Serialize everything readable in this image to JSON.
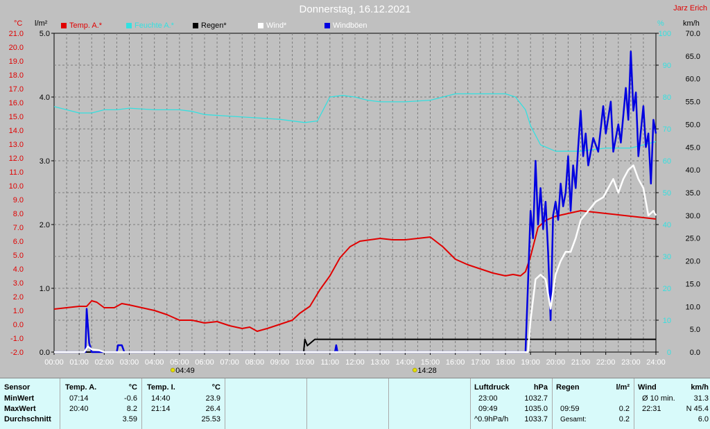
{
  "title": "Donnerstag, 16.12.2021",
  "author": "Jarz Erich",
  "legend": [
    {
      "label": "Temp. A.*",
      "color": "#e00000",
      "text_color": "#e00000"
    },
    {
      "label": "Feuchte A.*",
      "color": "#33e0e0",
      "text_color": "#33e0e0"
    },
    {
      "label": "Regen*",
      "color": "#000000",
      "text_color": "#000000"
    },
    {
      "label": "Wind*",
      "color": "#ffffff",
      "text_color": "#ffffff"
    },
    {
      "label": "Windböen",
      "color": "#0000e0",
      "text_color": "#ffffff"
    }
  ],
  "chart_data": {
    "type": "line",
    "x_range": [
      "00:00",
      "24:00"
    ],
    "x_ticks": [
      "00:00",
      "01:00",
      "02:00",
      "03:00",
      "04:00",
      "05:00",
      "06:00",
      "07:00",
      "08:00",
      "09:00",
      "10:00",
      "11:00",
      "12:00",
      "13:00",
      "14:00",
      "15:00",
      "16:00",
      "17:00",
      "18:00",
      "19:00",
      "20:00",
      "21:00",
      "22:00",
      "23:00",
      "24:00"
    ],
    "sunrise": "04:49",
    "sunset": "14:28",
    "grid": true,
    "axes": {
      "temp": {
        "unit": "°C",
        "min": -2.0,
        "max": 21.0,
        "ticks": [
          "-2.0",
          "-1.0",
          "0.0",
          "1.0",
          "2.0",
          "3.0",
          "4.0",
          "5.0",
          "6.0",
          "7.0",
          "8.0",
          "9.0",
          "10.0",
          "11.0",
          "12.0",
          "13.0",
          "14.0",
          "15.0",
          "16.0",
          "17.0",
          "18.0",
          "19.0",
          "20.0",
          "21.0"
        ]
      },
      "rain": {
        "unit": "l/m²",
        "min": 0.0,
        "max": 5.0,
        "ticks": [
          "0.0",
          "1.0",
          "2.0",
          "3.0",
          "4.0",
          "5.0"
        ]
      },
      "humidity": {
        "unit": "%",
        "min": 0,
        "max": 100,
        "ticks": [
          "0",
          "10",
          "20",
          "30",
          "40",
          "50",
          "60",
          "70",
          "80",
          "90",
          "100"
        ]
      },
      "wind": {
        "unit": "km/h",
        "min": 0.0,
        "max": 70.0,
        "ticks": [
          "0.0",
          "5.0",
          "10.0",
          "15.0",
          "20.0",
          "25.0",
          "30.0",
          "35.0",
          "40.0",
          "45.0",
          "50.0",
          "55.0",
          "60.0",
          "65.0",
          "70.0"
        ]
      }
    },
    "series": [
      {
        "name": "Temp. A.*",
        "axis": "temp",
        "color": "#e00000",
        "points": [
          [
            0,
            1.1
          ],
          [
            0.5,
            1.2
          ],
          [
            1,
            1.3
          ],
          [
            1.3,
            1.3
          ],
          [
            1.5,
            1.7
          ],
          [
            1.7,
            1.6
          ],
          [
            2,
            1.2
          ],
          [
            2.4,
            1.2
          ],
          [
            2.7,
            1.5
          ],
          [
            3,
            1.4
          ],
          [
            3.5,
            1.2
          ],
          [
            4,
            1.0
          ],
          [
            4.5,
            0.7
          ],
          [
            5,
            0.3
          ],
          [
            5.5,
            0.3
          ],
          [
            6,
            0.1
          ],
          [
            6.5,
            0.2
          ],
          [
            7,
            -0.1
          ],
          [
            7.5,
            -0.3
          ],
          [
            7.8,
            -0.2
          ],
          [
            8.1,
            -0.5
          ],
          [
            8.5,
            -0.3
          ],
          [
            9,
            0.0
          ],
          [
            9.5,
            0.3
          ],
          [
            9.8,
            0.8
          ],
          [
            10.2,
            1.3
          ],
          [
            10.6,
            2.5
          ],
          [
            11,
            3.5
          ],
          [
            11.4,
            4.8
          ],
          [
            11.8,
            5.6
          ],
          [
            12.2,
            6.0
          ],
          [
            12.6,
            6.1
          ],
          [
            13,
            6.2
          ],
          [
            13.5,
            6.1
          ],
          [
            14,
            6.1
          ],
          [
            14.5,
            6.2
          ],
          [
            15,
            6.3
          ],
          [
            15.5,
            5.6
          ],
          [
            16,
            4.7
          ],
          [
            16.5,
            4.3
          ],
          [
            17,
            4.0
          ],
          [
            17.5,
            3.7
          ],
          [
            18,
            3.5
          ],
          [
            18.3,
            3.6
          ],
          [
            18.6,
            3.5
          ],
          [
            18.8,
            3.8
          ],
          [
            19,
            4.9
          ],
          [
            19.3,
            7.0
          ],
          [
            19.6,
            7.5
          ],
          [
            20,
            7.8
          ],
          [
            20.5,
            8.0
          ],
          [
            21,
            8.2
          ],
          [
            21.5,
            8.1
          ],
          [
            22,
            8.0
          ],
          [
            22.5,
            7.9
          ],
          [
            23,
            7.8
          ],
          [
            23.5,
            7.7
          ],
          [
            24,
            7.6
          ]
        ]
      },
      {
        "name": "Feuchte A.*",
        "axis": "humidity",
        "color": "#33e0e0",
        "points": [
          [
            0,
            77
          ],
          [
            0.5,
            76
          ],
          [
            1,
            75
          ],
          [
            1.5,
            75
          ],
          [
            2,
            76
          ],
          [
            2.5,
            76
          ],
          [
            3,
            76.5
          ],
          [
            4,
            76
          ],
          [
            5,
            76
          ],
          [
            5.5,
            75.5
          ],
          [
            6,
            74.5
          ],
          [
            7,
            74
          ],
          [
            8,
            73.5
          ],
          [
            9,
            73
          ],
          [
            10,
            72
          ],
          [
            10.5,
            72.5
          ],
          [
            11,
            80
          ],
          [
            11.5,
            80.5
          ],
          [
            12,
            80
          ],
          [
            12.5,
            79
          ],
          [
            13,
            78.5
          ],
          [
            14,
            78.5
          ],
          [
            15,
            79
          ],
          [
            16,
            81
          ],
          [
            17,
            81
          ],
          [
            18,
            81
          ],
          [
            18.4,
            80
          ],
          [
            18.8,
            76
          ],
          [
            19,
            71
          ],
          [
            19.4,
            65
          ],
          [
            20,
            63
          ],
          [
            21,
            63
          ],
          [
            22,
            64
          ],
          [
            23,
            64
          ],
          [
            24,
            66
          ]
        ]
      },
      {
        "name": "Regen*",
        "axis": "rain",
        "color": "#000000",
        "points": [
          [
            0,
            0
          ],
          [
            9.95,
            0
          ],
          [
            10.0,
            0.2
          ],
          [
            10.1,
            0.1
          ],
          [
            10.4,
            0.2
          ],
          [
            11,
            0.2
          ],
          [
            24,
            0.2
          ]
        ]
      },
      {
        "name": "Wind*",
        "axis": "wind",
        "color": "#ffffff",
        "points": [
          [
            0,
            0
          ],
          [
            1.2,
            0
          ],
          [
            1.35,
            1.2
          ],
          [
            1.5,
            0.6
          ],
          [
            1.8,
            0.4
          ],
          [
            2,
            0
          ],
          [
            18.9,
            0
          ],
          [
            19.0,
            7.0
          ],
          [
            19.2,
            16.0
          ],
          [
            19.4,
            17.0
          ],
          [
            19.6,
            16.0
          ],
          [
            19.8,
            9.5
          ],
          [
            20.0,
            17.0
          ],
          [
            20.2,
            20.0
          ],
          [
            20.4,
            22.0
          ],
          [
            20.6,
            22.0
          ],
          [
            20.8,
            25.0
          ],
          [
            21.0,
            29.0
          ],
          [
            21.3,
            31.0
          ],
          [
            21.6,
            33.0
          ],
          [
            21.9,
            34.0
          ],
          [
            22.1,
            36.0
          ],
          [
            22.3,
            38.0
          ],
          [
            22.5,
            35.0
          ],
          [
            22.7,
            38.0
          ],
          [
            22.9,
            40.0
          ],
          [
            23.1,
            41.0
          ],
          [
            23.3,
            38.0
          ],
          [
            23.5,
            36.0
          ],
          [
            23.7,
            30.0
          ],
          [
            23.9,
            31.0
          ],
          [
            24,
            30.0
          ]
        ]
      },
      {
        "name": "Windböen",
        "axis": "wind",
        "color": "#0000e0",
        "points": [
          [
            0,
            0
          ],
          [
            1.25,
            0
          ],
          [
            1.3,
            9.5
          ],
          [
            1.4,
            2.0
          ],
          [
            1.5,
            0
          ],
          [
            2.5,
            0
          ],
          [
            2.55,
            1.5
          ],
          [
            2.7,
            1.5
          ],
          [
            2.8,
            0
          ],
          [
            11.2,
            0
          ],
          [
            11.25,
            1.5
          ],
          [
            11.3,
            0
          ],
          [
            18.8,
            0
          ],
          [
            18.9,
            15.0
          ],
          [
            19.0,
            31.0
          ],
          [
            19.1,
            25.0
          ],
          [
            19.2,
            42.0
          ],
          [
            19.3,
            28.0
          ],
          [
            19.4,
            36.0
          ],
          [
            19.5,
            27.0
          ],
          [
            19.6,
            33.0
          ],
          [
            19.7,
            22.0
          ],
          [
            19.8,
            7.0
          ],
          [
            19.9,
            30.0
          ],
          [
            20.0,
            33.0
          ],
          [
            20.1,
            29.0
          ],
          [
            20.2,
            37.0
          ],
          [
            20.3,
            32.0
          ],
          [
            20.4,
            35.0
          ],
          [
            20.5,
            43.0
          ],
          [
            20.6,
            31.0
          ],
          [
            20.7,
            41.0
          ],
          [
            20.8,
            36.0
          ],
          [
            20.9,
            45.0
          ],
          [
            21.0,
            53.0
          ],
          [
            21.1,
            43.0
          ],
          [
            21.2,
            48.0
          ],
          [
            21.3,
            41.0
          ],
          [
            21.5,
            47.0
          ],
          [
            21.7,
            44.0
          ],
          [
            21.9,
            54.0
          ],
          [
            22.0,
            48.0
          ],
          [
            22.2,
            55.0
          ],
          [
            22.3,
            44.0
          ],
          [
            22.5,
            50.0
          ],
          [
            22.6,
            46.0
          ],
          [
            22.8,
            58.0
          ],
          [
            22.9,
            51.0
          ],
          [
            23.0,
            66.0
          ],
          [
            23.1,
            53.0
          ],
          [
            23.2,
            57.0
          ],
          [
            23.3,
            43.0
          ],
          [
            23.5,
            54.0
          ],
          [
            23.6,
            45.0
          ],
          [
            23.7,
            48.0
          ],
          [
            23.8,
            37.0
          ],
          [
            23.9,
            51.0
          ],
          [
            24,
            48.0
          ]
        ]
      }
    ]
  },
  "table": {
    "sensor": {
      "header": "Sensor",
      "rows": [
        "MinWert",
        "MaxWert",
        "Durchschnitt"
      ]
    },
    "temp_a": {
      "header": "Temp. A.",
      "unit": "°C",
      "min_time": "07:14",
      "min_val": "-0.6",
      "max_time": "20:40",
      "max_val": "8.2",
      "avg": "3.59"
    },
    "temp_i": {
      "header": "Temp. I.",
      "unit": "°C",
      "min_time": "14:40",
      "min_val": "23.9",
      "max_time": "21:14",
      "max_val": "26.4",
      "avg": "25.53"
    },
    "pressure": {
      "header": "Luftdruck",
      "unit": "hPa",
      "r1_label": "23:00",
      "r1_val": "1032.7",
      "r2_label": "09:49",
      "r2_val": "1035.0",
      "r3_label": "^0.9hPa/h",
      "r3_val": "1033.7"
    },
    "rain": {
      "header": "Regen",
      "unit": "l/m²",
      "r2_label": "09:59",
      "r2_val": "0.2",
      "r3_label": "Gesamt:",
      "r3_val": "0.2"
    },
    "wind": {
      "header": "Wind",
      "unit": "km/h",
      "r1_label": "Ø 10 min.",
      "r1_val": "31.3",
      "r2_label": "22:31",
      "r2_val": "N 45.4",
      "r3_val": "6.0"
    }
  }
}
